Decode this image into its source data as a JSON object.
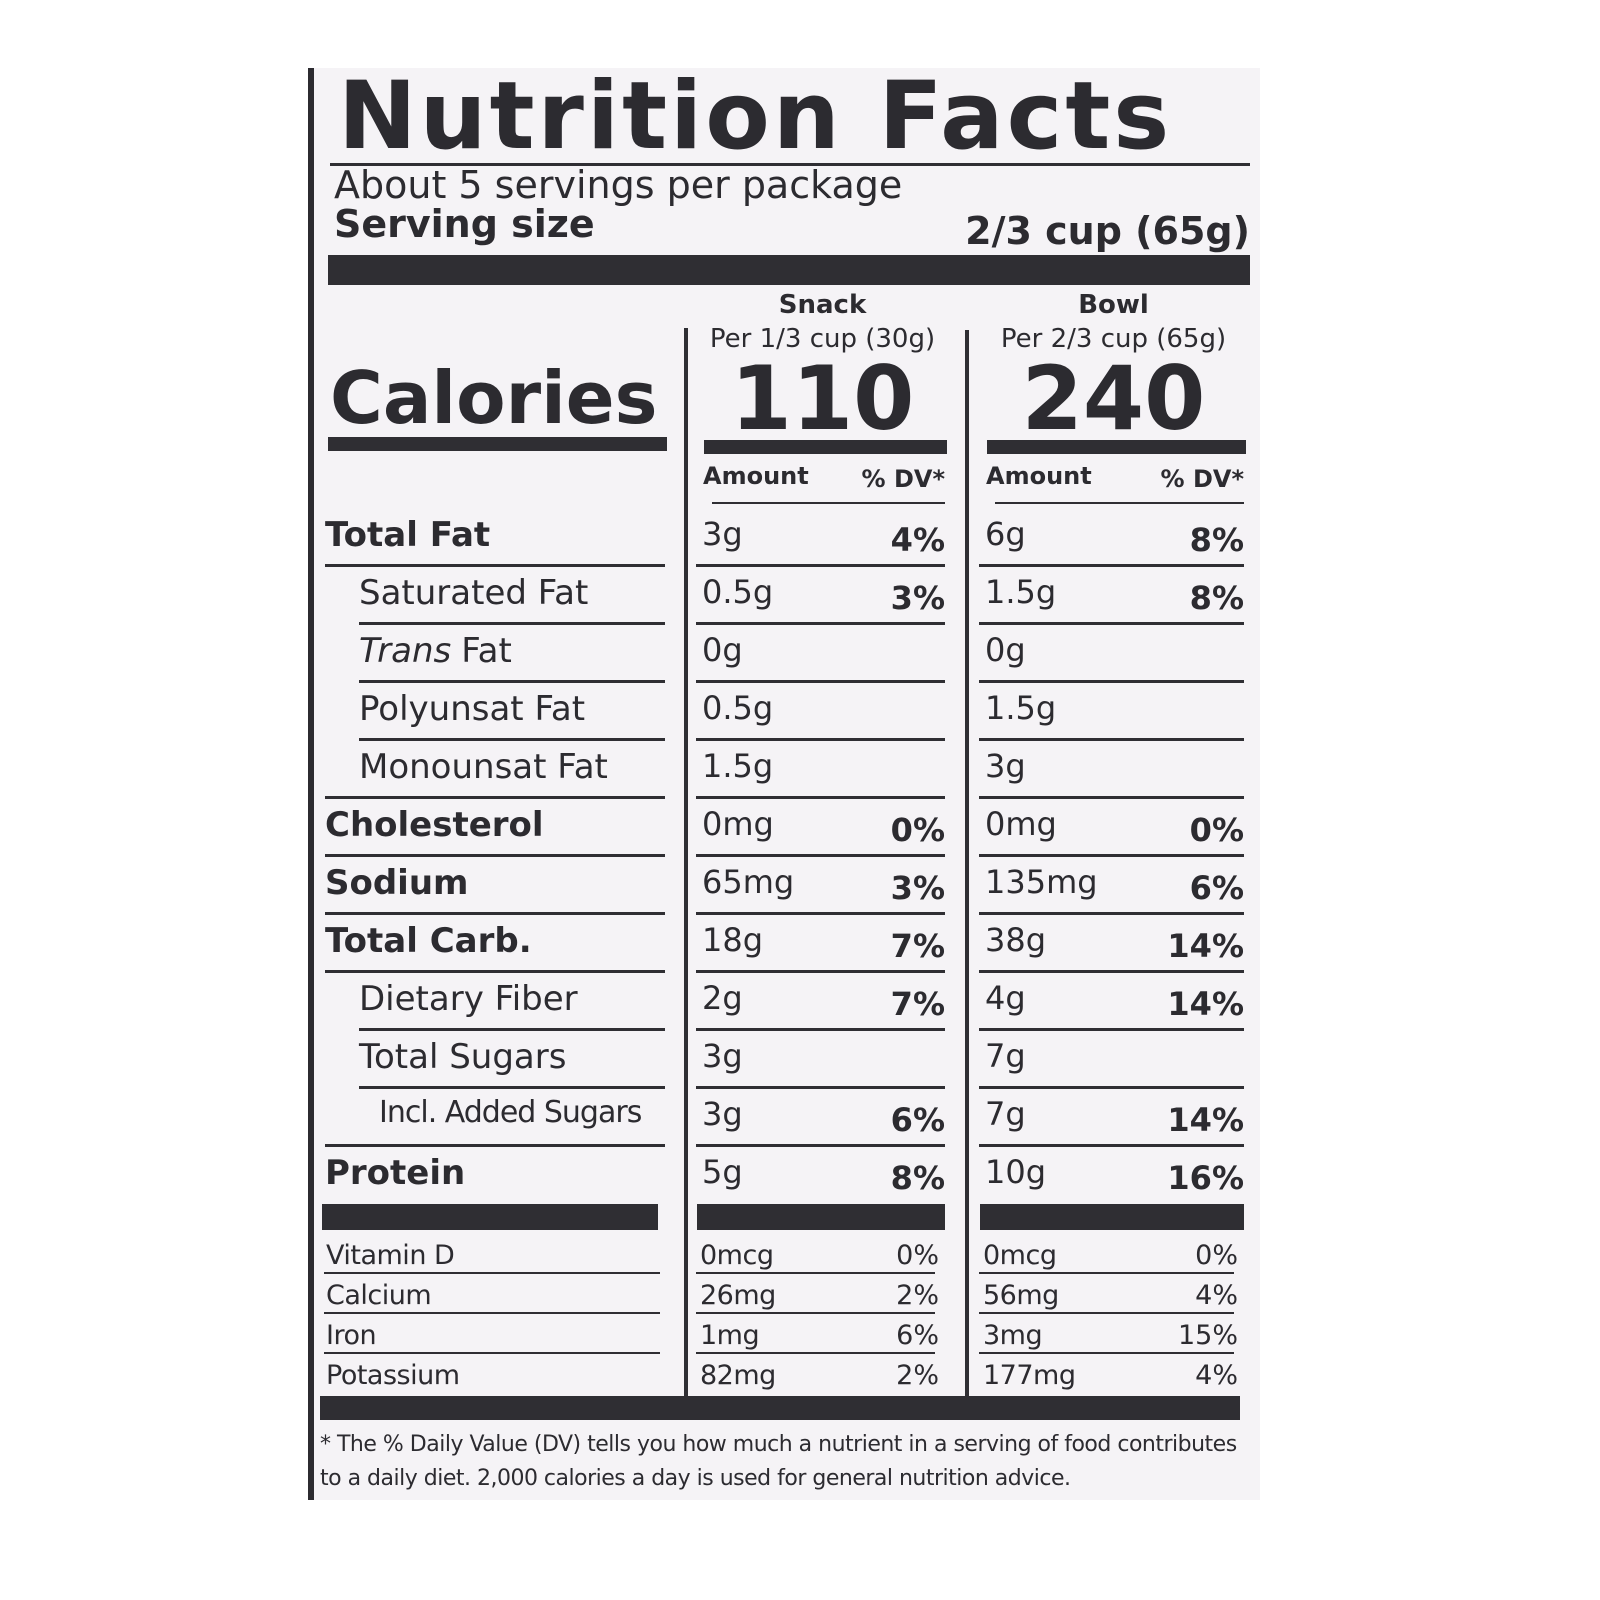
{
  "title": "Nutrition Facts",
  "servings": "About 5 servings per package",
  "serving_size": {
    "label": "Serving size",
    "value": "2/3 cup (65g)"
  },
  "calories_label": "Calories",
  "columns": [
    {
      "name": "Snack",
      "per": "Per 1/3 cup (30g)",
      "calories": "110",
      "amount_label": "Amount",
      "dv_label": "% DV*"
    },
    {
      "name": "Bowl",
      "per": "Per 2/3 cup (65g)",
      "calories": "240",
      "amount_label": "Amount",
      "dv_label": "% DV*"
    }
  ],
  "rows": [
    {
      "label": "Total Fat",
      "bold": true,
      "indent": 0,
      "cells": [
        {
          "amount": "3g",
          "dv": "4%"
        },
        {
          "amount": "6g",
          "dv": "8%"
        }
      ]
    },
    {
      "label": "Saturated Fat",
      "indent": 1,
      "cells": [
        {
          "amount": "0.5g",
          "dv": "3%"
        },
        {
          "amount": "1.5g",
          "dv": "8%"
        }
      ]
    },
    {
      "label_parts": [
        {
          "text": "Trans",
          "italic": true
        },
        {
          "text": "Fat"
        }
      ],
      "indent": 1,
      "cells": [
        {
          "amount": "0g"
        },
        {
          "amount": "0g"
        }
      ]
    },
    {
      "label": "Polyunsat Fat",
      "indent": 1,
      "cells": [
        {
          "amount": "0.5g"
        },
        {
          "amount": "1.5g"
        }
      ]
    },
    {
      "label": "Monounsat Fat",
      "indent": 1,
      "cells": [
        {
          "amount": "1.5g"
        },
        {
          "amount": "3g"
        }
      ]
    },
    {
      "label": "Cholesterol",
      "bold": true,
      "indent": 0,
      "cells": [
        {
          "amount": "0mg",
          "dv": "0%"
        },
        {
          "amount": "0mg",
          "dv": "0%"
        }
      ]
    },
    {
      "label": "Sodium",
      "bold": true,
      "indent": 0,
      "cells": [
        {
          "amount": "65mg",
          "dv": "3%"
        },
        {
          "amount": "135mg",
          "dv": "6%"
        }
      ]
    },
    {
      "label": "Total Carb.",
      "bold": true,
      "indent": 0,
      "cells": [
        {
          "amount": "18g",
          "dv": "7%"
        },
        {
          "amount": "38g",
          "dv": "14%"
        }
      ]
    },
    {
      "label": "Dietary Fiber",
      "indent": 1,
      "cells": [
        {
          "amount": "2g",
          "dv": "7%"
        },
        {
          "amount": "4g",
          "dv": "14%"
        }
      ]
    },
    {
      "label": "Total Sugars",
      "indent": 1,
      "cells": [
        {
          "amount": "3g"
        },
        {
          "amount": "7g"
        }
      ]
    },
    {
      "label": "Incl. Added Sugars",
      "indent": 2,
      "cells": [
        {
          "amount": "3g",
          "dv": "6%"
        },
        {
          "amount": "7g",
          "dv": "14%"
        }
      ]
    },
    {
      "label": "Protein",
      "bold": true,
      "indent": 0,
      "cells": [
        {
          "amount": "5g",
          "dv": "8%"
        },
        {
          "amount": "10g",
          "dv": "16%"
        }
      ]
    }
  ],
  "vitamins": [
    {
      "label": "Vitamin D",
      "cells": [
        {
          "amount": "0mcg",
          "dv": "0%"
        },
        {
          "amount": "0mcg",
          "dv": "0%"
        }
      ]
    },
    {
      "label": "Calcium",
      "cells": [
        {
          "amount": "26mg",
          "dv": "2%"
        },
        {
          "amount": "56mg",
          "dv": "4%"
        }
      ]
    },
    {
      "label": "Iron",
      "cells": [
        {
          "amount": "1mg",
          "dv": "6%"
        },
        {
          "amount": "3mg",
          "dv": "15%"
        }
      ]
    },
    {
      "label": "Potassium",
      "cells": [
        {
          "amount": "82mg",
          "dv": "2%"
        },
        {
          "amount": "177mg",
          "dv": "4%"
        }
      ]
    }
  ],
  "footnote": "* The % Daily Value (DV) tells you how much a nutrient in a serving of food contributes to a daily diet. 2,000 calories a day is used for general nutrition advice."
}
